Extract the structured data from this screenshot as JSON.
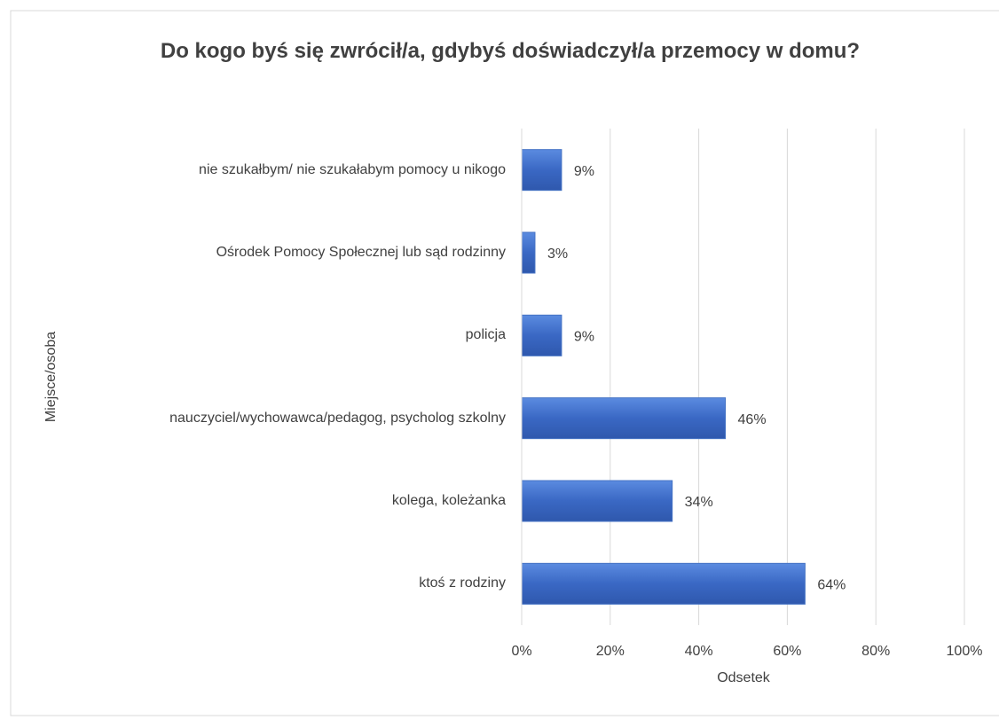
{
  "chart_data": {
    "type": "bar",
    "orientation": "horizontal",
    "title": "Do kogo byś się zwrócił/a, gdybyś doświadczył/a przemocy w domu?",
    "x_label": "Odsetek",
    "y_label": "Miejsce/osoba",
    "categories": [
      "nie szukałbym/ nie szukałabym pomocy u nikogo",
      "Ośrodek Pomocy Społecznej lub sąd rodzinny",
      "policja",
      "nauczyciel/wychowawca/pedagog, psycholog szkolny",
      "kolega, koleżanka",
      "ktoś z rodziny"
    ],
    "values": [
      9,
      3,
      9,
      46,
      34,
      64
    ],
    "value_labels": [
      "9%",
      "3%",
      "9%",
      "46%",
      "34%",
      "64%"
    ],
    "color": "#4472c4",
    "xlim": [
      0,
      100
    ],
    "xticks": [
      {
        "value": 0,
        "label": "0%"
      },
      {
        "value": 20,
        "label": "20%"
      },
      {
        "value": 40,
        "label": "40%"
      },
      {
        "value": 60,
        "label": "60%"
      },
      {
        "value": 80,
        "label": "80%"
      },
      {
        "value": 100,
        "label": "100%"
      }
    ],
    "grid": true
  }
}
